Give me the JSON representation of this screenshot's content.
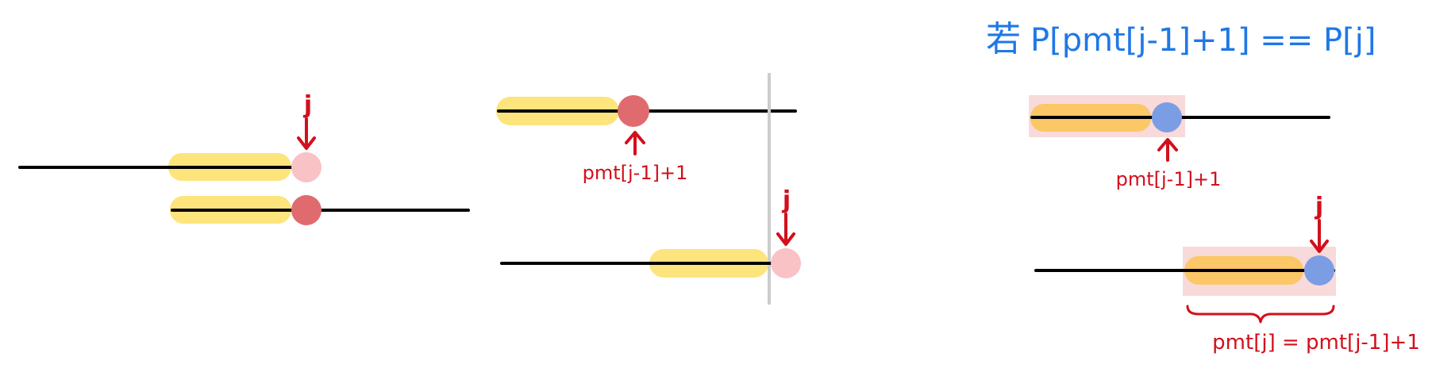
{
  "labels": {
    "j": "j",
    "pmt_prev_plus_one": "pmt[j-1]+1",
    "pmt_result": "pmt[j] = pmt[j-1]+1"
  },
  "condition": {
    "prefix": "若",
    "text": "P[pmt[j-1]+1] == P[j]"
  },
  "colors": {
    "line": "#000000",
    "highlight": "#fde47c",
    "highlight_orange": "#fbc767",
    "pink_dot": "#f9c2c4",
    "red_dot": "#e06b6e",
    "blue_dot": "#7b9de4",
    "pink_box": "#f8dada",
    "annotation_red": "#d30f1c",
    "condition_blue": "#1f78e6",
    "divider": "#cccccc"
  }
}
